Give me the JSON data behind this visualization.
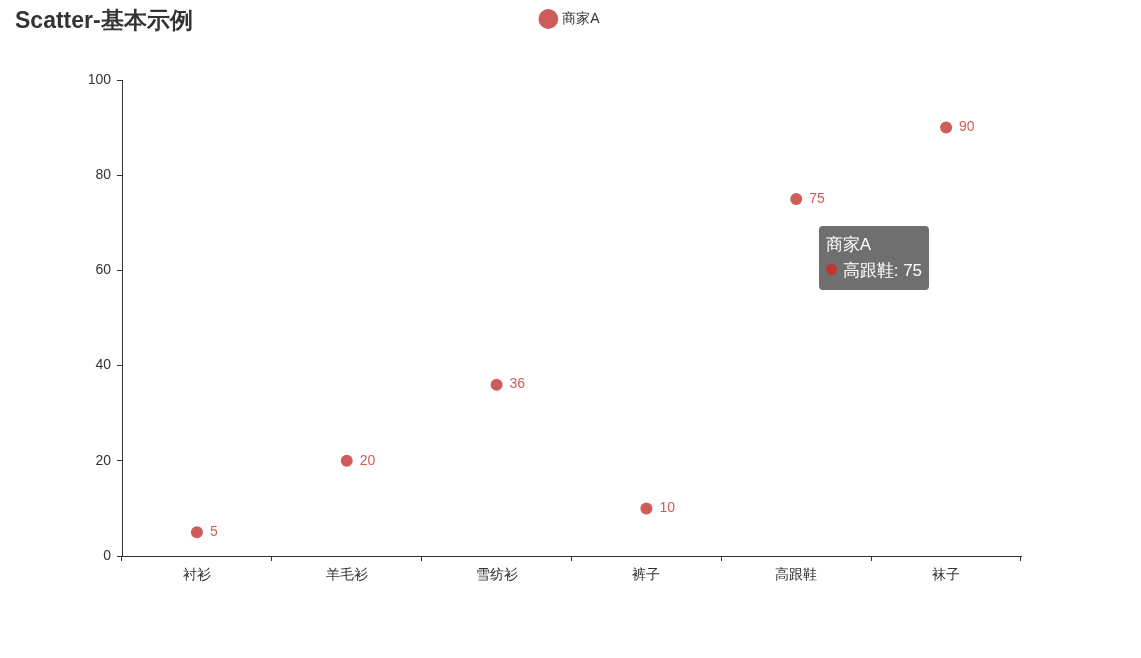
{
  "chart_data": {
    "type": "scatter",
    "title": "Scatter-基本示例",
    "categories": [
      "衬衫",
      "羊毛衫",
      "雪纺衫",
      "裤子",
      "高跟鞋",
      "袜子"
    ],
    "series": [
      {
        "name": "商家A",
        "color": "#ce5d5a",
        "values": [
          5,
          20,
          36,
          10,
          75,
          90
        ]
      }
    ],
    "ylim": [
      0,
      100
    ],
    "yticks": [
      0,
      20,
      40,
      60,
      80,
      100
    ],
    "grid": false,
    "legend": "top",
    "marker": "circle",
    "data_labels": true,
    "annotations": [
      "商家A",
      "高跟鞋: 75"
    ]
  }
}
